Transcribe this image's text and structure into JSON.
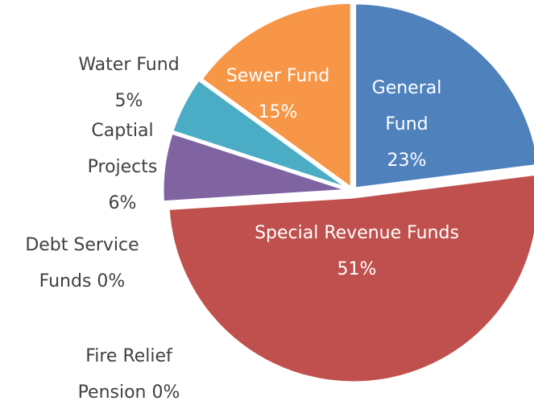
{
  "chart_data": {
    "type": "pie",
    "categories": [
      "General Fund",
      "Special Revenue Funds",
      "Debt Service Funds",
      "Fire Relief Pension",
      "Captial Projects",
      "Water Fund",
      "Sewer Fund"
    ],
    "values": [
      23,
      51,
      0,
      0,
      6,
      5,
      15
    ],
    "value_labels": [
      "23%",
      "51%",
      "0%",
      "0%",
      "6%",
      "5%",
      "15%"
    ],
    "colors": [
      "#4f81bd",
      "#c0504d",
      "#9bbb59",
      "#f2c314",
      "#8064a2",
      "#4bacc6",
      "#f79646"
    ]
  }
}
